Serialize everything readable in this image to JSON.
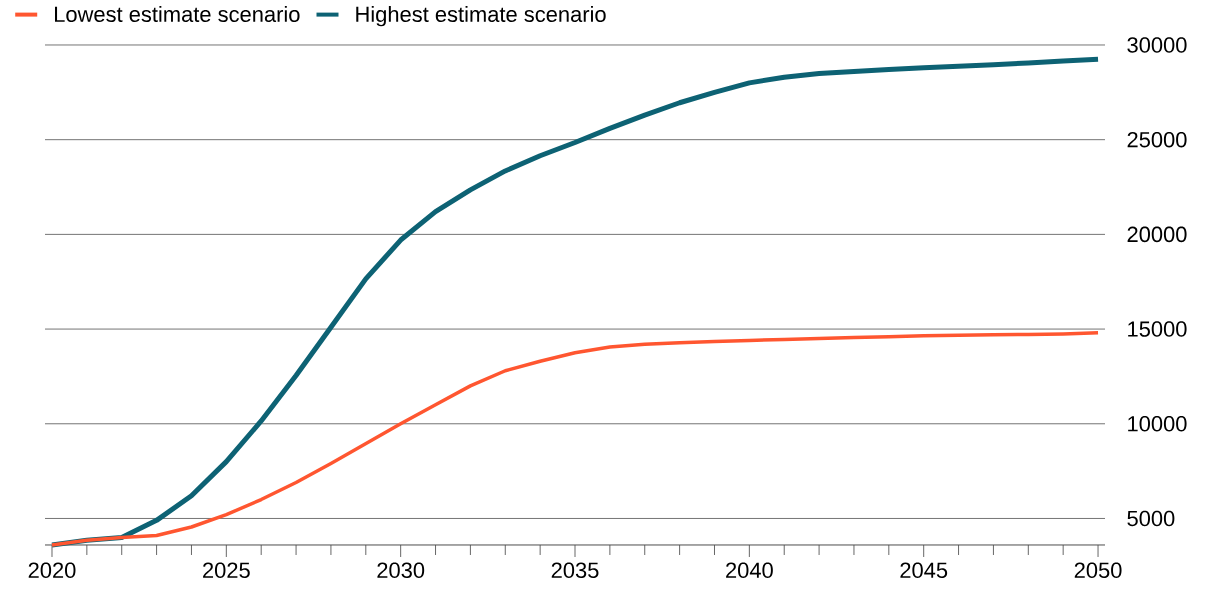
{
  "chart_data": {
    "type": "line",
    "x": [
      2020,
      2021,
      2022,
      2023,
      2024,
      2025,
      2026,
      2027,
      2028,
      2029,
      2030,
      2031,
      2032,
      2033,
      2034,
      2035,
      2036,
      2037,
      2038,
      2039,
      2040,
      2041,
      2042,
      2043,
      2044,
      2045,
      2046,
      2047,
      2048,
      2049,
      2050
    ],
    "series": [
      {
        "name": "Lowest estimate scenario",
        "color": "#ff5630",
        "values": [
          3600,
          3850,
          4000,
          4100,
          4550,
          5200,
          6000,
          6900,
          7900,
          8950,
          10000,
          11000,
          12000,
          12800,
          13300,
          13750,
          14050,
          14200,
          14280,
          14350,
          14400,
          14450,
          14500,
          14550,
          14600,
          14650,
          14680,
          14700,
          14720,
          14740,
          14800
        ]
      },
      {
        "name": "Highest estimate scenario",
        "color": "#0d6274",
        "values": [
          3600,
          3850,
          4000,
          4900,
          6200,
          8000,
          10150,
          12550,
          15100,
          17650,
          19700,
          21200,
          22350,
          23350,
          24150,
          24850,
          25600,
          26300,
          26950,
          27500,
          28000,
          28300,
          28500,
          28600,
          28700,
          28800,
          28880,
          28960,
          29050,
          29150,
          29250
        ]
      }
    ],
    "xlim": [
      2019.8,
      2050.2
    ],
    "xticks": [
      2020,
      {
        "value": 2021,
        "label": null
      },
      {
        "value": 2022,
        "label": null
      },
      {
        "value": 2023,
        "label": null
      },
      {
        "value": 2024,
        "label": null
      },
      2025,
      {
        "value": 2026,
        "label": null
      },
      {
        "value": 2027,
        "label": null
      },
      {
        "value": 2028,
        "label": null
      },
      {
        "value": 2029,
        "label": null
      },
      2030,
      {
        "value": 2031,
        "label": null
      },
      {
        "value": 2032,
        "label": null
      },
      {
        "value": 2033,
        "label": null
      },
      {
        "value": 2034,
        "label": null
      },
      2035,
      {
        "value": 2036,
        "label": null
      },
      {
        "value": 2037,
        "label": null
      },
      {
        "value": 2038,
        "label": null
      },
      {
        "value": 2039,
        "label": null
      },
      2040,
      {
        "value": 2041,
        "label": null
      },
      {
        "value": 2042,
        "label": null
      },
      {
        "value": 2043,
        "label": null
      },
      {
        "value": 2044,
        "label": null
      },
      2045,
      {
        "value": 2046,
        "label": null
      },
      {
        "value": 2047,
        "label": null
      },
      {
        "value": 2048,
        "label": null
      },
      {
        "value": 2049,
        "label": null
      },
      2050
    ],
    "ylim": [
      3600,
      30000
    ],
    "yticks": [
      5000,
      10000,
      15000,
      20000,
      25000,
      30000
    ],
    "grid": "y",
    "legend": "top left",
    "line_style": "solid"
  }
}
